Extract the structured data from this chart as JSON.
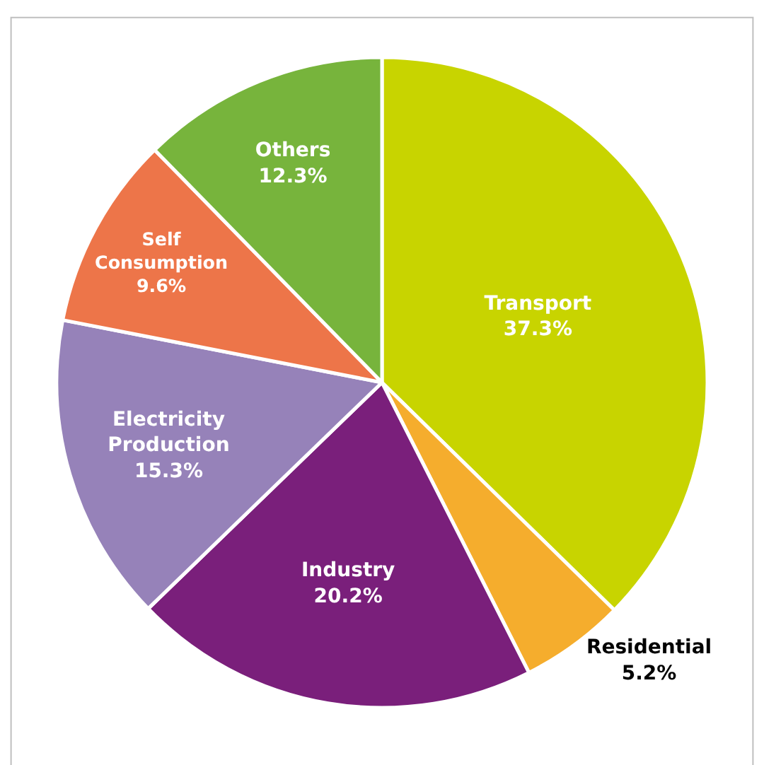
{
  "chart_data": {
    "type": "pie",
    "categories": [
      "Transport",
      "Residential",
      "Industry",
      "Electricity Production",
      "Self Consumption",
      "Others"
    ],
    "values": [
      37.3,
      5.2,
      20.2,
      15.3,
      9.6,
      12.3
    ],
    "colors": [
      "#c8d400",
      "#f5ad2d",
      "#7a1f7b",
      "#9682b9",
      "#ed7549",
      "#77b43c"
    ],
    "value_labels": [
      "37.3%",
      "5.2%",
      "20.2%",
      "15.3%",
      "9.6%",
      "12.3%"
    ],
    "legend": false
  }
}
